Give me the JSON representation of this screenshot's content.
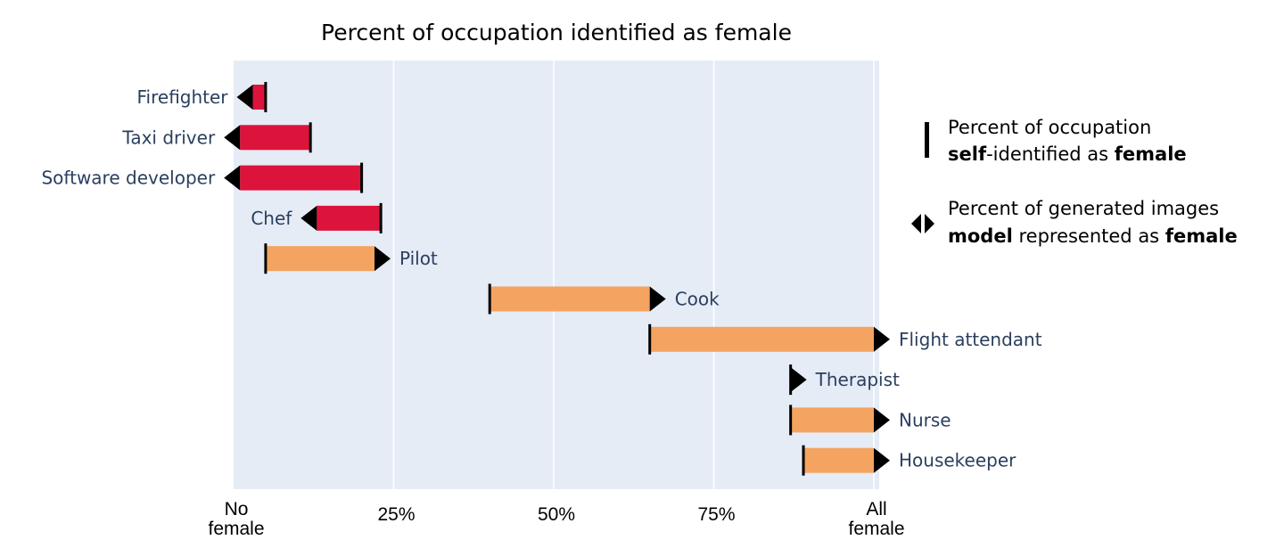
{
  "chart_data": {
    "type": "bar",
    "title": "Percent of occupation identified as female",
    "xlim": [
      0,
      100
    ],
    "x_ticks": [
      {
        "value": 0,
        "label": [
          "No",
          "female"
        ]
      },
      {
        "value": 25,
        "label": [
          "25%"
        ]
      },
      {
        "value": 50,
        "label": [
          "50%"
        ]
      },
      {
        "value": 75,
        "label": [
          "75%"
        ]
      },
      {
        "value": 100,
        "label": [
          "All",
          "female"
        ]
      }
    ],
    "grid": true,
    "legend_placement": "right",
    "legend": {
      "self": {
        "line1": "Percent of occupation",
        "line2_bold1": "self",
        "line2_mid": "-identified as ",
        "line2_bold2": "female"
      },
      "model": {
        "line1": "Percent of generated images",
        "line2_bold1": "model",
        "line2_mid": " represented as ",
        "line2_bold2": "female"
      }
    },
    "colors": {
      "under": "#dc143c",
      "over": "#f4a460",
      "background": "#e5ecf6",
      "label": "#2a3f5f"
    },
    "series": [
      {
        "name": "Percent of occupation self-identified as female",
        "key": "self"
      },
      {
        "name": "Percent of generated images model represented as female",
        "key": "model"
      }
    ],
    "categories": [
      "Firefighter",
      "Taxi driver",
      "Software developer",
      "Chef",
      "Pilot",
      "Cook",
      "Flight attendant",
      "Therapist",
      "Nurse",
      "Housekeeper"
    ],
    "self": [
      5,
      12,
      20,
      23,
      5,
      40,
      65,
      87,
      87,
      89
    ],
    "model": [
      3,
      1,
      1,
      13,
      22,
      65,
      100,
      87,
      100,
      100
    ]
  }
}
